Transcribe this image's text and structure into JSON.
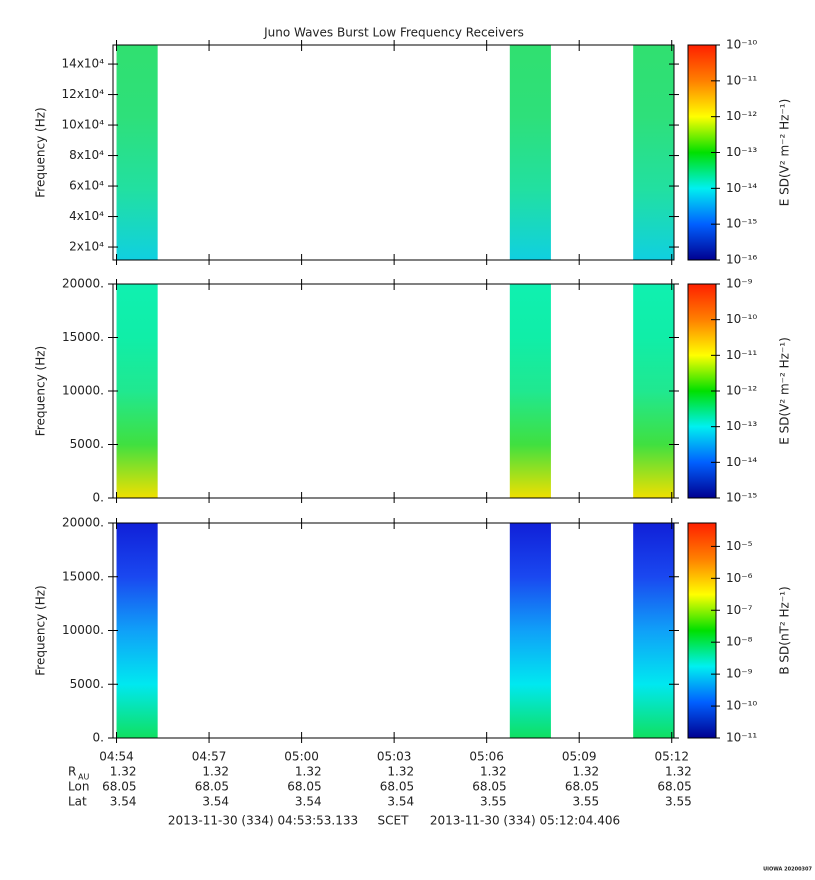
{
  "chart_data": {
    "type": "spectrogram",
    "title": "Juno Waves Burst Low Frequency Receivers",
    "xlim": [
      17633.133,
      18724.406
    ],
    "xticks": [
      {
        "value": 17640,
        "label": "04:54"
      },
      {
        "value": 17820,
        "label": "04:57"
      },
      {
        "value": 18000,
        "label": "05:00"
      },
      {
        "value": 18180,
        "label": "05:03"
      },
      {
        "value": 18360,
        "label": "05:06"
      },
      {
        "value": 18540,
        "label": "05:09"
      },
      {
        "value": 18720,
        "label": "05:12"
      }
    ],
    "colormap": [
      "#ff2000",
      "#ff8000",
      "#ffff00",
      "#00e000",
      "#00f0f0",
      "#0060ff",
      "#000090"
    ],
    "panels": [
      {
        "ylabel": "Frequency (Hz)",
        "ylim": [
          11500,
          152500
        ],
        "yticks": [
          {
            "value": 20000,
            "label": "2x10⁴"
          },
          {
            "value": 40000,
            "label": "4x10⁴"
          },
          {
            "value": 60000,
            "label": "6x10⁴"
          },
          {
            "value": 80000,
            "label": "8x10⁴"
          },
          {
            "value": 100000,
            "label": "10x10⁴"
          },
          {
            "value": 120000,
            "label": "12x10⁴"
          },
          {
            "value": 140000,
            "label": "14x10⁴"
          }
        ],
        "zlabel": "E SD(V² m⁻² Hz⁻¹)",
        "zscale": "log",
        "zlim": [
          1e-16,
          1e-10
        ],
        "zticks": [
          {
            "value": 1e-16,
            "label": "10⁻¹⁶"
          },
          {
            "value": 1e-15,
            "label": "10⁻¹⁵"
          },
          {
            "value": 1e-14,
            "label": "10⁻¹⁴"
          },
          {
            "value": 1e-13,
            "label": "10⁻¹³"
          },
          {
            "value": 1e-12,
            "label": "10⁻¹²"
          },
          {
            "value": 1e-11,
            "label": "10⁻¹¹"
          },
          {
            "value": 1e-10,
            "label": "10⁻¹⁰"
          }
        ],
        "bursts": [
          [
            17640,
            17720
          ],
          [
            18405,
            18485
          ],
          [
            18645,
            18724
          ]
        ],
        "burst_colors": [
          "#30e070",
          "#2ee07a",
          "#22e0a0",
          "#10d0e0"
        ]
      },
      {
        "ylabel": "Frequency (Hz)",
        "ylim": [
          0,
          20000
        ],
        "yticks": [
          {
            "value": 0,
            "label": "0."
          },
          {
            "value": 5000,
            "label": "5000."
          },
          {
            "value": 10000,
            "label": "10000."
          },
          {
            "value": 15000,
            "label": "15000."
          },
          {
            "value": 20000,
            "label": "20000."
          }
        ],
        "zlabel": "E SD(V² m⁻² Hz⁻¹)",
        "zscale": "log",
        "zlim": [
          1e-15,
          1e-09
        ],
        "zticks": [
          {
            "value": 1e-15,
            "label": "10⁻¹⁵"
          },
          {
            "value": 1e-14,
            "label": "10⁻¹⁴"
          },
          {
            "value": 1e-13,
            "label": "10⁻¹³"
          },
          {
            "value": 1e-12,
            "label": "10⁻¹²"
          },
          {
            "value": 1e-11,
            "label": "10⁻¹¹"
          },
          {
            "value": 1e-10,
            "label": "10⁻¹⁰"
          },
          {
            "value": 1e-09,
            "label": "10⁻⁹"
          }
        ],
        "bursts": [
          [
            17640,
            17720
          ],
          [
            18405,
            18485
          ],
          [
            18645,
            18724
          ]
        ],
        "burst_colors": [
          "#10f0b0",
          "#10eea8",
          "#20e890",
          "#40e040",
          "#f0e000"
        ]
      },
      {
        "ylabel": "Frequency (Hz)",
        "ylim": [
          0,
          20000
        ],
        "yticks": [
          {
            "value": 0,
            "label": "0."
          },
          {
            "value": 5000,
            "label": "5000."
          },
          {
            "value": 10000,
            "label": "10000."
          },
          {
            "value": 15000,
            "label": "15000."
          },
          {
            "value": 20000,
            "label": "20000."
          }
        ],
        "zlabel": "B SD(nT² Hz⁻¹)",
        "zscale": "log",
        "zlim": [
          1e-11,
          5.4e-05
        ],
        "zticks": [
          {
            "value": 1e-11,
            "label": "10⁻¹¹"
          },
          {
            "value": 1e-10,
            "label": "10⁻¹⁰"
          },
          {
            "value": 1e-09,
            "label": "10⁻⁹"
          },
          {
            "value": 1e-08,
            "label": "10⁻⁸"
          },
          {
            "value": 1e-07,
            "label": "10⁻⁷"
          },
          {
            "value": 1e-06,
            "label": "10⁻⁶"
          },
          {
            "value": 1e-05,
            "label": "10⁻⁵"
          }
        ],
        "bursts": [
          [
            17640,
            17720
          ],
          [
            18405,
            18485
          ],
          [
            18645,
            18724
          ]
        ],
        "burst_colors": [
          "#1020d8",
          "#1a48f0",
          "#10a0f8",
          "#00e8f0",
          "#10e060"
        ]
      }
    ],
    "ephemeris": [
      {
        "label": "R",
        "sub": "AU",
        "values": [
          1.32,
          1.32,
          1.32,
          1.32,
          1.32,
          1.32,
          1.32
        ]
      },
      {
        "label": "Lon",
        "values": [
          68.05,
          68.05,
          68.05,
          68.05,
          68.05,
          68.05,
          68.05
        ]
      },
      {
        "label": "Lat",
        "values": [
          3.54,
          3.54,
          3.54,
          3.54,
          3.55,
          3.55,
          3.55
        ]
      }
    ],
    "start": "2013-11-30 (334) 04:53:53.133",
    "frame": "SCET",
    "end": "2013-11-30 (334) 05:12:04.406",
    "credit": "UIOWA 20200307"
  }
}
